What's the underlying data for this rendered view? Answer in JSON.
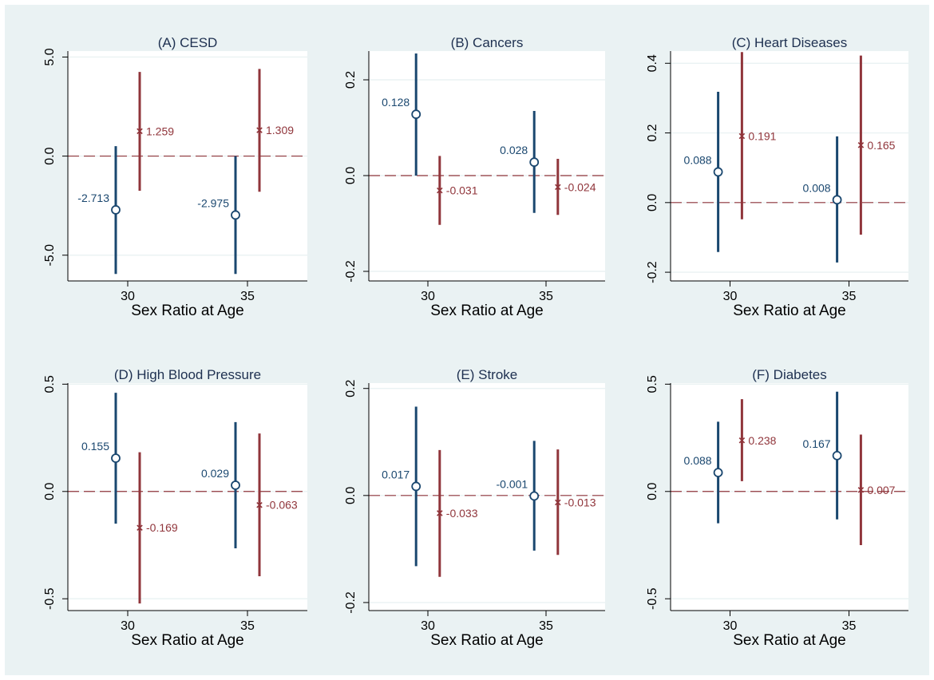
{
  "figure": {
    "background": "#eaf2f3",
    "plot_background": "#ffffff",
    "grid_color": "#eaf2f3",
    "zero_line_color": "#90353b",
    "colors": {
      "est1": "#1a476f",
      "est2": "#90353b"
    },
    "xlabel": "Sex Ratio at Age",
    "x_ticks": [
      30,
      35
    ]
  },
  "chart_data": [
    {
      "type": "scatter",
      "title": "(A) CESD",
      "xlabel": "Sex Ratio at Age",
      "ylabel": "",
      "x_ticks": [
        30,
        35
      ],
      "xlim": [
        27.5,
        37.5
      ],
      "ylim": [
        -6.3,
        5.3
      ],
      "y_ticks": [
        5.0,
        0.0,
        -5.0
      ],
      "y_tick_labels": [
        "5.0",
        "0.0",
        "-5.0"
      ],
      "series": [
        {
          "marker": "circle",
          "x": [
            29.5,
            34.5
          ],
          "values": [
            -2.713,
            -2.975
          ],
          "lower": [
            -5.95,
            -5.95
          ],
          "upper": [
            0.5,
            0.0
          ],
          "labels": [
            "-2.713",
            "-2.975"
          ]
        },
        {
          "marker": "x",
          "x": [
            30.5,
            35.5
          ],
          "values": [
            1.259,
            1.309
          ],
          "lower": [
            -1.75,
            -1.8
          ],
          "upper": [
            4.25,
            4.4
          ],
          "labels": [
            "1.259",
            "1.309"
          ]
        }
      ]
    },
    {
      "type": "scatter",
      "title": "(B) Cancers",
      "xlabel": "Sex Ratio at Age",
      "ylabel": "",
      "x_ticks": [
        30,
        35
      ],
      "xlim": [
        27.5,
        37.5
      ],
      "ylim": [
        -0.22,
        0.26
      ],
      "y_ticks": [
        0.2,
        0.0,
        -0.2
      ],
      "y_tick_labels": [
        "0.2",
        "0.0",
        "-0.2"
      ],
      "series": [
        {
          "marker": "circle",
          "x": [
            29.5,
            34.5
          ],
          "values": [
            0.128,
            0.028
          ],
          "lower": [
            0.0,
            -0.078
          ],
          "upper": [
            0.255,
            0.135
          ],
          "labels": [
            "0.128",
            "0.028"
          ]
        },
        {
          "marker": "x",
          "x": [
            30.5,
            35.5
          ],
          "values": [
            -0.031,
            -0.024
          ],
          "lower": [
            -0.103,
            -0.082
          ],
          "upper": [
            0.041,
            0.035
          ],
          "labels": [
            "-0.031",
            "-0.024"
          ]
        }
      ]
    },
    {
      "type": "scatter",
      "title": "(C) Heart Diseases",
      "xlabel": "Sex Ratio at Age",
      "ylabel": "",
      "x_ticks": [
        30,
        35
      ],
      "xlim": [
        27.5,
        37.5
      ],
      "ylim": [
        -0.225,
        0.435
      ],
      "y_ticks": [
        0.4,
        0.2,
        0.0,
        -0.2
      ],
      "y_tick_labels": [
        "0.4",
        "0.2",
        "0.0",
        "-0.2"
      ],
      "series": [
        {
          "marker": "circle",
          "x": [
            29.5,
            34.5
          ],
          "values": [
            0.088,
            0.008
          ],
          "lower": [
            -0.142,
            -0.172
          ],
          "upper": [
            0.318,
            0.19
          ],
          "labels": [
            "0.088",
            "0.008"
          ]
        },
        {
          "marker": "x",
          "x": [
            30.5,
            35.5
          ],
          "values": [
            0.191,
            0.165
          ],
          "lower": [
            -0.048,
            -0.092
          ],
          "upper": [
            0.432,
            0.422
          ],
          "labels": [
            "0.191",
            "0.165"
          ]
        }
      ]
    },
    {
      "type": "scatter",
      "title": "(D) High Blood Pressure",
      "xlabel": "Sex Ratio at Age",
      "ylabel": "",
      "x_ticks": [
        30,
        35
      ],
      "xlim": [
        27.5,
        37.5
      ],
      "ylim": [
        -0.555,
        0.505
      ],
      "y_ticks": [
        0.5,
        0.0,
        -0.5
      ],
      "y_tick_labels": [
        "0.5",
        "0.0",
        "-0.5"
      ],
      "series": [
        {
          "marker": "circle",
          "x": [
            29.5,
            34.5
          ],
          "values": [
            0.155,
            0.029
          ],
          "lower": [
            -0.15,
            -0.265
          ],
          "upper": [
            0.46,
            0.323
          ],
          "labels": [
            "0.155",
            "0.029"
          ]
        },
        {
          "marker": "x",
          "x": [
            30.5,
            35.5
          ],
          "values": [
            -0.169,
            -0.063
          ],
          "lower": [
            -0.522,
            -0.395
          ],
          "upper": [
            0.183,
            0.27
          ],
          "labels": [
            "-0.169",
            "-0.063"
          ]
        }
      ]
    },
    {
      "type": "scatter",
      "title": "(E) Stroke",
      "xlabel": "Sex Ratio at Age",
      "ylabel": "",
      "x_ticks": [
        30,
        35
      ],
      "xlim": [
        27.5,
        37.5
      ],
      "ylim": [
        -0.215,
        0.21
      ],
      "y_ticks": [
        0.2,
        0.0,
        -0.2
      ],
      "y_tick_labels": [
        "0.2",
        "0.0",
        "-0.2"
      ],
      "series": [
        {
          "marker": "circle",
          "x": [
            29.5,
            34.5
          ],
          "values": [
            0.017,
            -0.001
          ],
          "lower": [
            -0.132,
            -0.103
          ],
          "upper": [
            0.166,
            0.102
          ],
          "labels": [
            "0.017",
            "-0.001"
          ]
        },
        {
          "marker": "x",
          "x": [
            30.5,
            35.5
          ],
          "values": [
            -0.033,
            -0.013
          ],
          "lower": [
            -0.152,
            -0.111
          ],
          "upper": [
            0.085,
            0.086
          ],
          "labels": [
            "-0.033",
            "-0.013"
          ]
        }
      ]
    },
    {
      "type": "scatter",
      "title": "(F) Diabetes",
      "xlabel": "Sex Ratio at Age",
      "ylabel": "",
      "x_ticks": [
        30,
        35
      ],
      "xlim": [
        27.5,
        37.5
      ],
      "ylim": [
        -0.555,
        0.505
      ],
      "y_ticks": [
        0.5,
        0.0,
        -0.5
      ],
      "y_tick_labels": [
        "0.5",
        "0.0",
        "-0.5"
      ],
      "series": [
        {
          "marker": "circle",
          "x": [
            29.5,
            34.5
          ],
          "values": [
            0.088,
            0.167
          ],
          "lower": [
            -0.148,
            -0.13
          ],
          "upper": [
            0.325,
            0.465
          ],
          "labels": [
            "0.088",
            "0.167"
          ]
        },
        {
          "marker": "x",
          "x": [
            30.5,
            35.5
          ],
          "values": [
            0.238,
            0.007
          ],
          "lower": [
            0.048,
            -0.25
          ],
          "upper": [
            0.43,
            0.265
          ],
          "labels": [
            "0.238",
            "0.007"
          ]
        }
      ]
    }
  ]
}
